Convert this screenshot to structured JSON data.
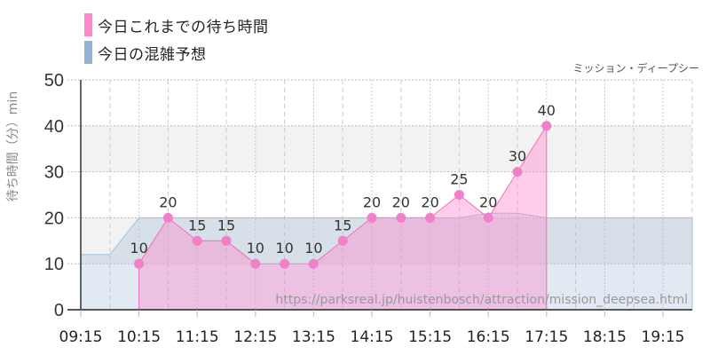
{
  "legend": {
    "items": [
      {
        "label": "今日これまでの待ち時間",
        "color": "#ff88cc"
      },
      {
        "label": "今日の混雑予想",
        "color": "#92b4d2"
      }
    ]
  },
  "subtitle": "ミッション・ディープシー",
  "watermark": "https://parksreal.jp/huistenbosch/attraction/mission_deepsea.html",
  "chart_data": {
    "type": "area",
    "title": "ミッション・ディープシー",
    "xlabel": "",
    "ylabel": "待ち時間（分）min",
    "ylim": [
      0,
      50
    ],
    "y_ticks": [
      0,
      10,
      20,
      30,
      40,
      50
    ],
    "x_ticks": [
      "09:15",
      "10:15",
      "11:15",
      "12:15",
      "13:15",
      "14:15",
      "15:15",
      "16:15",
      "17:15",
      "18:15",
      "19:15"
    ],
    "grid": true,
    "legend_position": "top-left",
    "series": [
      {
        "name": "今日これまでの待ち時間",
        "color": "#ff88cc",
        "x": [
          "10:15",
          "10:45",
          "11:15",
          "11:45",
          "12:15",
          "12:45",
          "13:15",
          "13:45",
          "14:15",
          "14:45",
          "15:15",
          "15:45",
          "16:15",
          "16:45",
          "17:15"
        ],
        "values": [
          10,
          20,
          15,
          15,
          10,
          10,
          10,
          15,
          20,
          20,
          20,
          25,
          20,
          30,
          40
        ]
      },
      {
        "name": "今日の混雑予想",
        "color": "#92b4d2",
        "x": [
          "09:00",
          "09:15",
          "09:45",
          "10:15",
          "10:45",
          "11:15",
          "11:45",
          "12:15",
          "12:45",
          "13:15",
          "13:45",
          "14:15",
          "14:45",
          "15:15",
          "15:45",
          "16:15",
          "16:45",
          "17:15",
          "19:45"
        ],
        "values": [
          12,
          12,
          12,
          20,
          20,
          20,
          20,
          20,
          20,
          20,
          20,
          20,
          20,
          20,
          20,
          21,
          21,
          20,
          20
        ]
      }
    ]
  }
}
